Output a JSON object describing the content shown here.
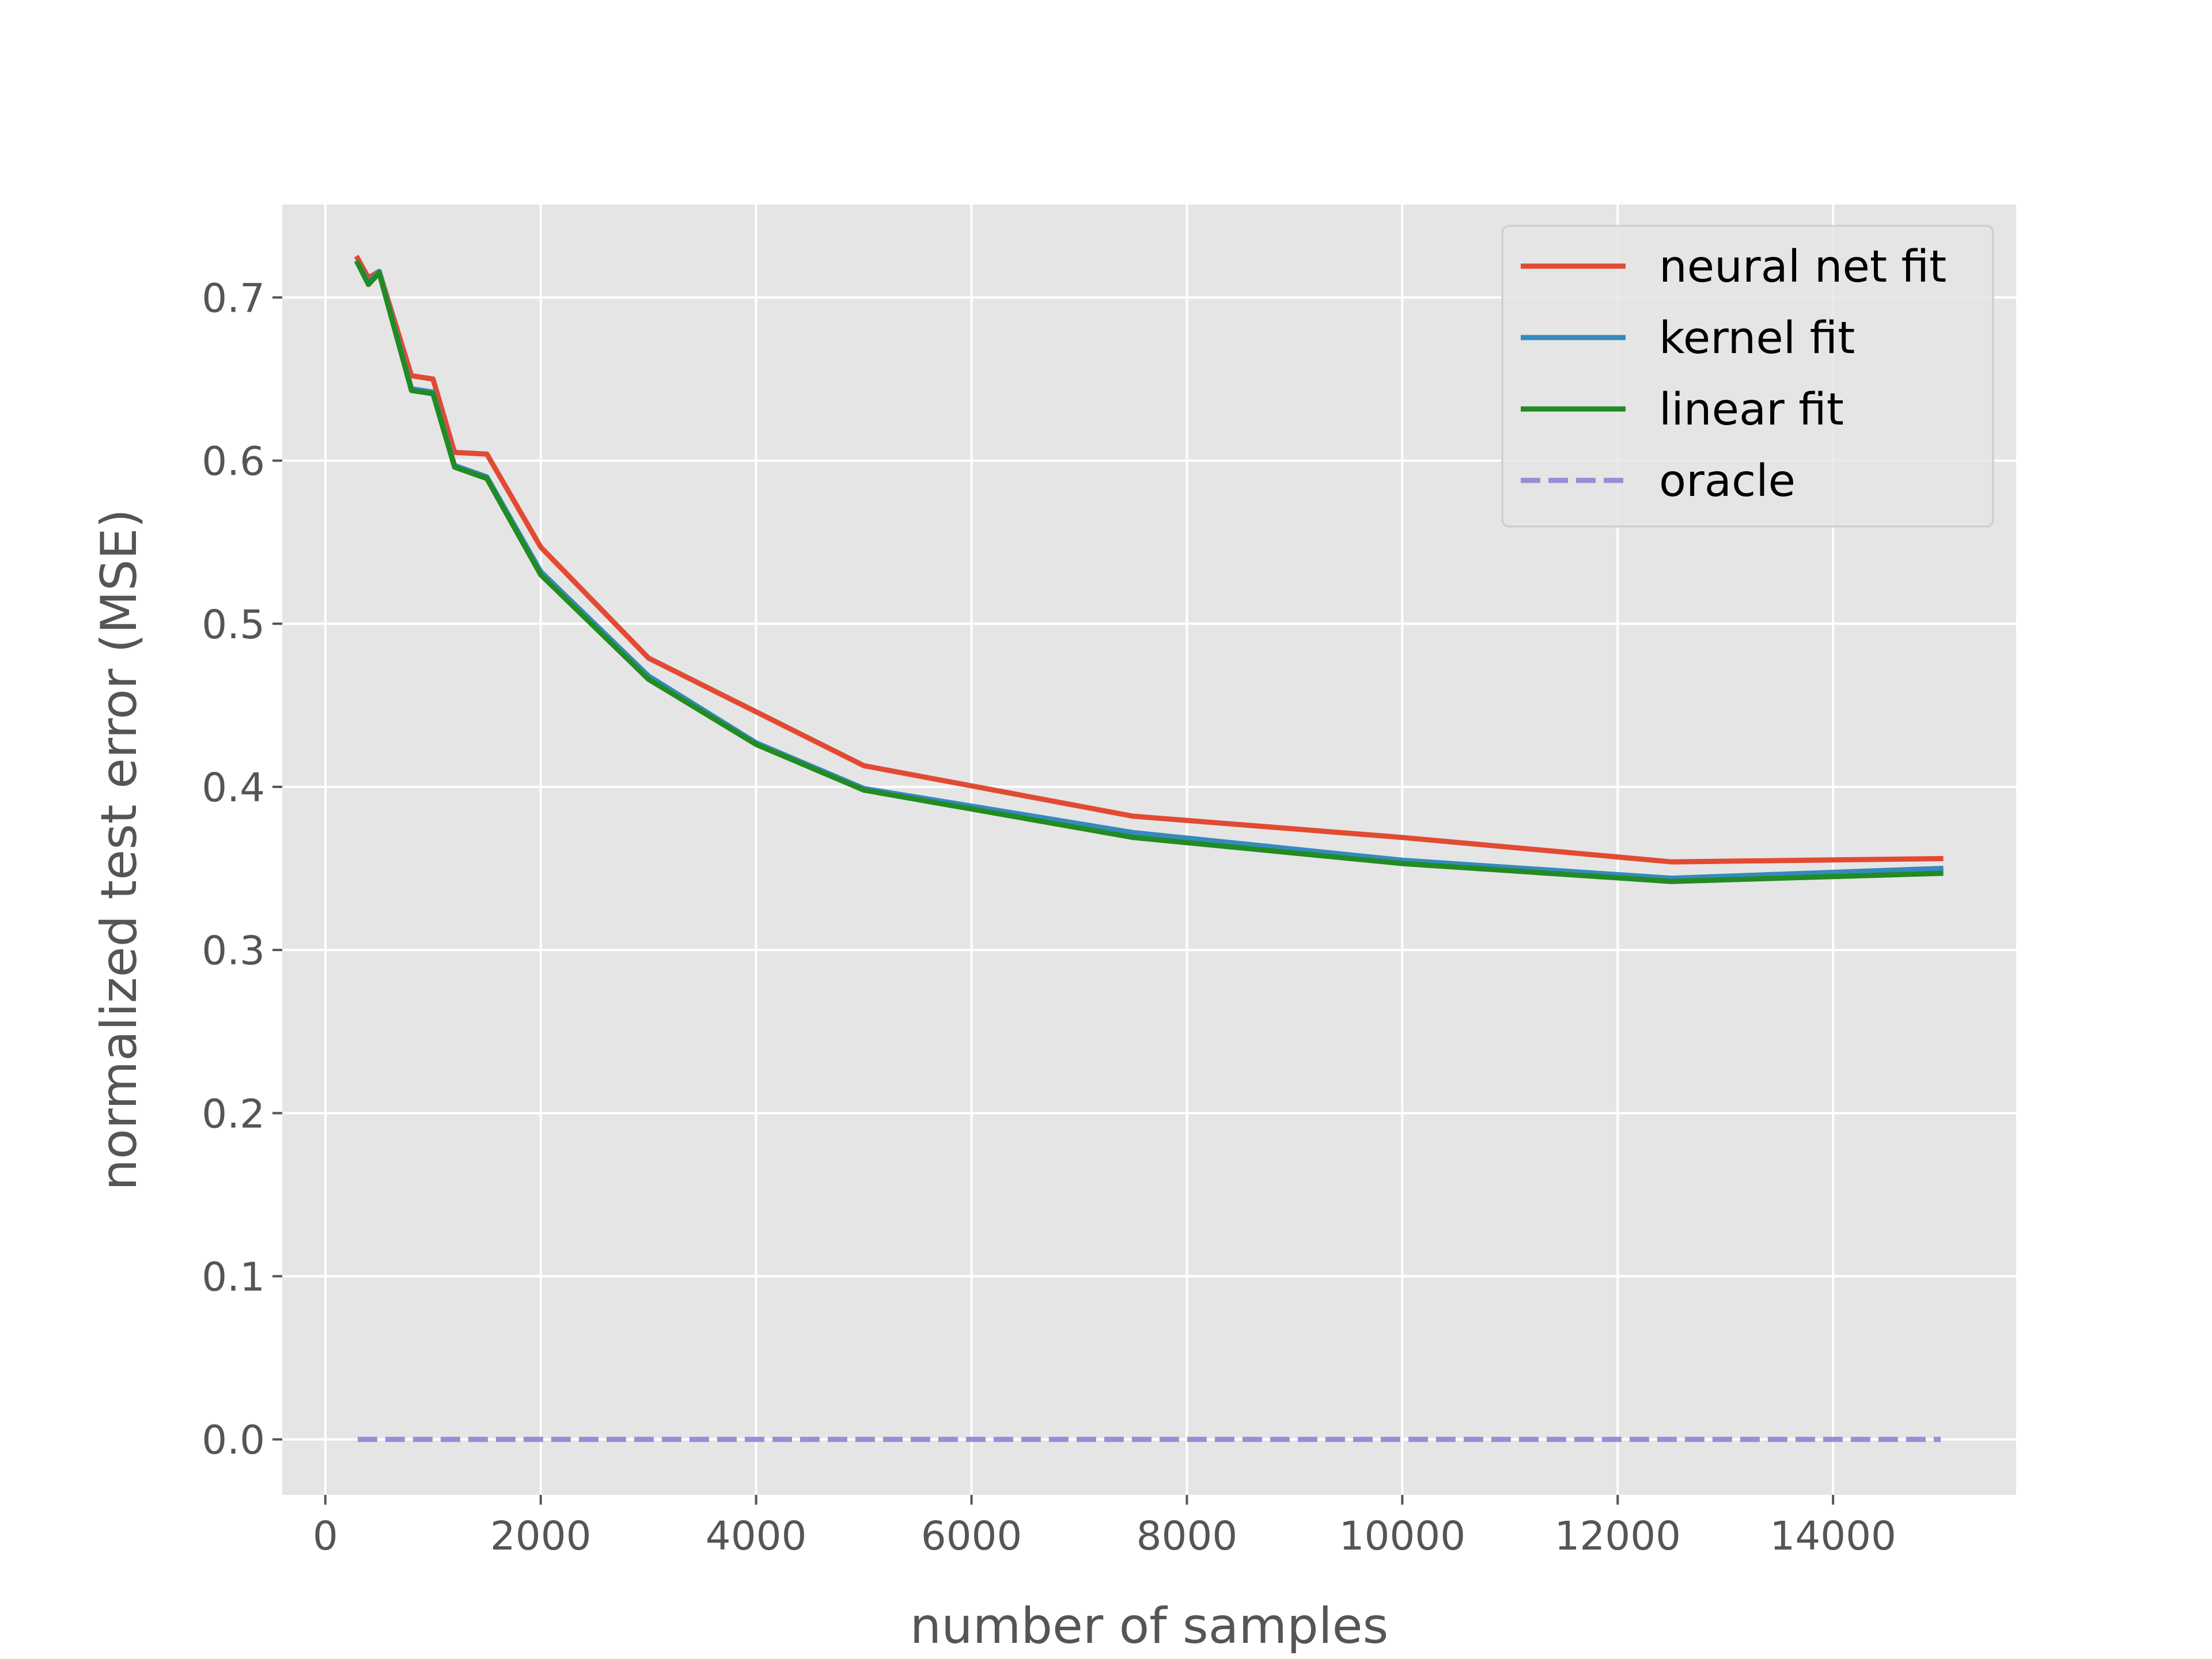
{
  "chart_data": {
    "type": "line",
    "title": "",
    "xlabel": "number of samples",
    "ylabel": "normalized test error (MSE)",
    "xlim": [
      -400,
      15700
    ],
    "ylim": [
      -0.034,
      0.757
    ],
    "xticks": [
      0,
      2000,
      4000,
      6000,
      8000,
      10000,
      12000,
      14000
    ],
    "xtick_labels": [
      "0",
      "2000",
      "4000",
      "6000",
      "8000",
      "10000",
      "12000",
      "14000"
    ],
    "yticks": [
      0.0,
      0.1,
      0.2,
      0.3,
      0.4,
      0.5,
      0.6,
      0.7
    ],
    "ytick_labels": [
      "0.0",
      "0.1",
      "0.2",
      "0.3",
      "0.4",
      "0.5",
      "0.6",
      "0.7"
    ],
    "grid": true,
    "background": "#e5e5e5",
    "legend_position": "top-right",
    "x": [
      300,
      400,
      500,
      800,
      1000,
      1200,
      1500,
      2000,
      3000,
      4000,
      5000,
      7500,
      10000,
      12500,
      15000
    ],
    "series": [
      {
        "name": "neural net fit",
        "color": "#e24a33",
        "style": "solid",
        "values": [
          0.724,
          0.712,
          0.716,
          0.652,
          0.65,
          0.605,
          0.604,
          0.547,
          0.479,
          0.446,
          0.413,
          0.382,
          0.369,
          0.354,
          0.356
        ]
      },
      {
        "name": "kernel fit",
        "color": "#348abd",
        "style": "solid",
        "values": [
          0.721,
          0.709,
          0.716,
          0.644,
          0.642,
          0.597,
          0.59,
          0.532,
          0.468,
          0.427,
          0.399,
          0.372,
          0.355,
          0.344,
          0.35
        ]
      },
      {
        "name": "linear fit",
        "color": "#228b22",
        "style": "solid",
        "values": [
          0.721,
          0.708,
          0.715,
          0.643,
          0.641,
          0.596,
          0.589,
          0.53,
          0.466,
          0.426,
          0.398,
          0.369,
          0.353,
          0.342,
          0.347
        ]
      },
      {
        "name": "oracle",
        "color": "#988ed5",
        "style": "dashed",
        "values": [
          0.0,
          0.0,
          0.0,
          0.0,
          0.0,
          0.0,
          0.0,
          0.0,
          0.0,
          0.0,
          0.0,
          0.0,
          0.0,
          0.0,
          0.0
        ]
      }
    ]
  }
}
